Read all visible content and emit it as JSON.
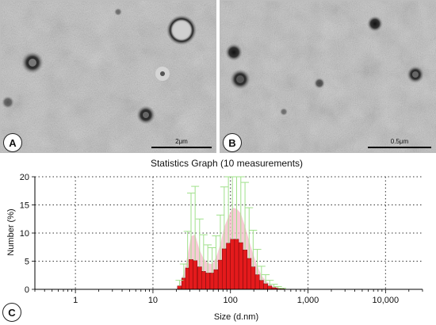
{
  "panels": {
    "a": {
      "letter": "A",
      "scale_label": "2μm"
    },
    "b": {
      "letter": "B",
      "scale_label": "0.5μm"
    },
    "c": {
      "letter": "C"
    }
  },
  "colors": {
    "em_background": "#b8b8b8",
    "bar_fill": "#e41a1c",
    "bar_outline": "#7a0a0a",
    "error_bar": "#9fe08a",
    "spread_fill": "#f6b8c8",
    "grid": "#333333"
  },
  "chart_data": {
    "type": "bar",
    "title": "Statistics Graph (10 measurements)",
    "xlabel": "Size (d.nm)",
    "ylabel": "Number (%)",
    "x_scale": "log",
    "xlim": [
      0.3,
      30000
    ],
    "ylim": [
      0,
      20
    ],
    "x_ticks": [
      1,
      10,
      100,
      1000,
      10000
    ],
    "x_tick_labels": [
      "1",
      "10",
      "100",
      "1,000",
      "10,000"
    ],
    "y_ticks": [
      0,
      5,
      10,
      15,
      20
    ],
    "y_tick_labels": [
      "0",
      "5",
      "10",
      "15",
      "20"
    ],
    "grid": true,
    "series": [
      {
        "x": [
          22,
          25,
          28,
          31,
          35,
          40,
          45,
          51,
          58,
          65,
          74,
          83,
          94,
          106,
          120,
          136,
          154,
          174,
          196,
          222,
          251,
          284,
          321,
          363,
          410,
          464,
          524
        ],
        "values": [
          0.6,
          2.0,
          3.8,
          5.3,
          5.1,
          4.0,
          3.2,
          2.9,
          2.9,
          3.5,
          5.2,
          7.2,
          8.2,
          8.9,
          8.9,
          8.3,
          7.0,
          5.5,
          4.0,
          2.6,
          1.6,
          1.0,
          0.6,
          0.3,
          0.2,
          0.1,
          0.0
        ],
        "errors": [
          1.0,
          2.5,
          6.5,
          11.8,
          13.2,
          8.5,
          6.5,
          5.0,
          4.5,
          6.0,
          8.0,
          11.0,
          13.5,
          16.0,
          15.5,
          14.8,
          12.0,
          9.0,
          6.5,
          4.5,
          2.5,
          1.6,
          1.0,
          0.6,
          0.3,
          0.1,
          0.0
        ]
      }
    ]
  }
}
